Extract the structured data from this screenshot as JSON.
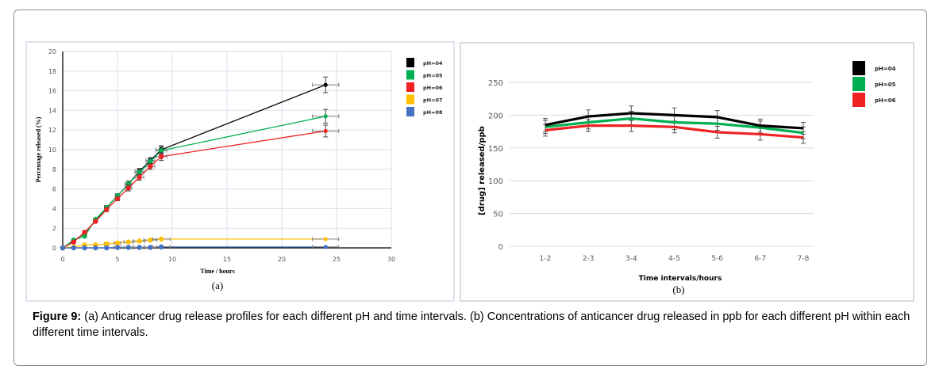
{
  "figure": {
    "caption_label": "Figure 9:",
    "caption_text": " (a) Anticancer drug release profiles for each different pH and time intervals. (b) Concentrations of anticancer drug released in ppb for each different pH within each different time intervals."
  },
  "chart_data": [
    {
      "type": "line",
      "panel_label": "(a)",
      "title": "",
      "xlabel": "Time / hours",
      "ylabel": "Percentage released (%)",
      "xlim": [
        0,
        30
      ],
      "ylim": [
        0,
        20
      ],
      "x_ticks": [
        "0",
        "5",
        "10",
        "15",
        "20",
        "25",
        "30"
      ],
      "y_ticks": [
        "0",
        "2",
        "4",
        "6",
        "8",
        "10",
        "12",
        "14",
        "16",
        "18",
        "20"
      ],
      "grid": true,
      "legend_position": "right",
      "x": [
        0,
        1,
        2,
        3,
        4,
        5,
        6,
        7,
        8,
        9,
        24
      ],
      "series": [
        {
          "name": "pH=04",
          "color": "#000000",
          "values": [
            0,
            0.7,
            1.5,
            2.8,
            4.1,
            5.3,
            6.5,
            7.8,
            8.9,
            10.0,
            16.6
          ],
          "y_err": [
            0,
            0.1,
            0.1,
            0.1,
            0.2,
            0.2,
            0.3,
            0.3,
            0.3,
            0.4,
            0.8
          ],
          "x_err": [
            0,
            0,
            0,
            0,
            0,
            0.2,
            0.3,
            0.4,
            0.4,
            0.5,
            1.2
          ]
        },
        {
          "name": "pH=05",
          "color": "#00b050",
          "values": [
            0,
            0.8,
            1.2,
            2.9,
            4.1,
            5.3,
            6.5,
            7.7,
            8.8,
            9.9,
            13.4
          ],
          "y_err": [
            0,
            0.1,
            0.1,
            0.1,
            0.2,
            0.2,
            0.3,
            0.3,
            0.3,
            0.4,
            0.7
          ],
          "x_err": [
            0,
            0,
            0,
            0,
            0,
            0.2,
            0.3,
            0.4,
            0.4,
            0.5,
            1.2
          ]
        },
        {
          "name": "pH=06",
          "color": "#ee2222",
          "values": [
            0,
            0.6,
            1.6,
            2.7,
            3.9,
            5.0,
            6.1,
            7.2,
            8.3,
            9.3,
            11.9
          ],
          "y_err": [
            0,
            0.1,
            0.1,
            0.1,
            0.2,
            0.2,
            0.3,
            0.3,
            0.3,
            0.4,
            0.6
          ],
          "x_err": [
            0,
            0,
            0,
            0,
            0,
            0.2,
            0.3,
            0.4,
            0.4,
            0.5,
            1.2
          ]
        },
        {
          "name": "pH=07",
          "color": "#ffc000",
          "values": [
            0,
            0.1,
            0.3,
            0.3,
            0.4,
            0.5,
            0.6,
            0.7,
            0.8,
            0.9,
            0.9
          ],
          "y_err": [
            0,
            0,
            0,
            0,
            0,
            0,
            0,
            0,
            0,
            0,
            0
          ],
          "x_err": [
            0,
            0,
            0,
            0,
            0.2,
            0.3,
            0.4,
            0.5,
            0.6,
            0.8,
            1.2
          ]
        },
        {
          "name": "pH=08",
          "color": "#4472c4",
          "values": [
            0,
            0,
            0,
            0,
            0,
            0.05,
            0.05,
            0.05,
            0.05,
            0.1,
            0.1
          ],
          "y_err": [
            0,
            0,
            0,
            0,
            0,
            0,
            0,
            0,
            0,
            0,
            0
          ],
          "x_err": [
            0,
            0,
            0,
            0,
            0,
            0.3,
            0.4,
            0.5,
            0.6,
            0.8,
            1.2
          ]
        }
      ]
    },
    {
      "type": "line",
      "panel_label": "(b)",
      "title": "",
      "xlabel": "Time intervals/hours",
      "ylabel": "[drug] released/ppb",
      "ylim": [
        0,
        250
      ],
      "categories": [
        "1-2",
        "2-3",
        "3-4",
        "4-5",
        "5-6",
        "6-7",
        "7-8"
      ],
      "y_ticks": [
        "0",
        "50",
        "100",
        "150",
        "200",
        "250"
      ],
      "grid": true,
      "legend_position": "right",
      "series": [
        {
          "name": "pH=04",
          "color": "#000000",
          "values": [
            185,
            198,
            203,
            200,
            197,
            184,
            180
          ],
          "y_err": [
            10,
            10,
            11,
            11,
            10,
            10,
            9
          ]
        },
        {
          "name": "pH=05",
          "color": "#00b050",
          "values": [
            182,
            189,
            195,
            189,
            187,
            181,
            173
          ],
          "y_err": [
            10,
            10,
            11,
            11,
            10,
            10,
            9
          ]
        },
        {
          "name": "pH=06",
          "color": "#ee2222",
          "values": [
            177,
            184,
            184,
            182,
            174,
            171,
            166
          ],
          "y_err": [
            9,
            9,
            9,
            9,
            9,
            9,
            9
          ]
        }
      ]
    }
  ]
}
